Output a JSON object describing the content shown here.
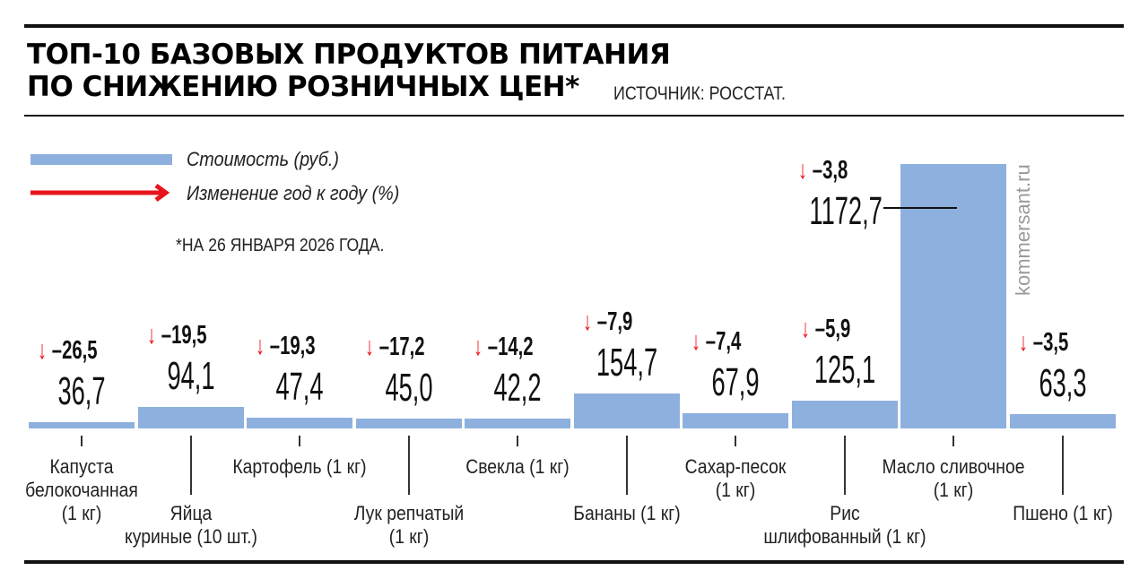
{
  "header": {
    "title_line1": "ТОП-10 БАЗОВЫХ ПРОДУКТОВ ПИТАНИЯ",
    "title_line2": "ПО СНИЖЕНИЮ РОЗНИЧНЫХ ЦЕН*",
    "source": "ИСТОЧНИК: РОССТАТ."
  },
  "legend": {
    "bar_label": "Стоимость (руб.)",
    "arrow_label": "Изменение год к году (%)"
  },
  "footnote": "*НА 26 ЯНВАРЯ 2026 ГОДА.",
  "watermark": "kommersant.ru",
  "colors": {
    "bar": "#8eb0de",
    "arrow": "#e8141b",
    "rule": "#111111"
  },
  "arrow_glyph": "↓",
  "chart_data": {
    "type": "bar",
    "title": "ТОП-10 базовых продуктов питания по снижению розничных цен*",
    "subtitle": "Источник: Росстат. *На 26 января 2026 года.",
    "xlabel": "",
    "ylabel": "Стоимость (руб.)",
    "categories": [
      "Капуста белокочанная (1 кг)",
      "Яйца куриные (10 шт.)",
      "Картофель (1 кг)",
      "Лук репчатый (1 кг)",
      "Свекла (1 кг)",
      "Бананы (1 кг)",
      "Сахар-песок (1 кг)",
      "Рис шлифованный (1 кг)",
      "Масло сливочное (1 кг)",
      "Пшено (1 кг)"
    ],
    "series": [
      {
        "name": "Стоимость (руб.)",
        "values": [
          36.7,
          94.1,
          47.4,
          45.0,
          42.2,
          154.7,
          67.9,
          125.1,
          1172.7,
          63.3
        ]
      },
      {
        "name": "Изменение год к году (%)",
        "values": [
          -26.5,
          -19.5,
          -19.3,
          -17.2,
          -14.2,
          -7.9,
          -7.4,
          -5.9,
          -3.8,
          -3.5
        ]
      }
    ],
    "legend_position": "top-left",
    "grid": false
  },
  "bars": [
    {
      "value": "36,7",
      "change": "–26,5",
      "label_lines": [
        "Капуста",
        "белокочанная",
        "(1 кг)"
      ]
    },
    {
      "value": "94,1",
      "change": "–19,5",
      "label_lines": [
        "Яйца",
        "куриные (10 шт.)"
      ]
    },
    {
      "value": "47,4",
      "change": "–19,3",
      "label_lines": [
        "Картофель (1 кг)"
      ]
    },
    {
      "value": "45,0",
      "change": "–17,2",
      "label_lines": [
        "Лук репчатый",
        "(1 кг)"
      ]
    },
    {
      "value": "42,2",
      "change": "–14,2",
      "label_lines": [
        "Свекла (1 кг)"
      ]
    },
    {
      "value": "154,7",
      "change": "–7,9",
      "label_lines": [
        "Бананы (1 кг)"
      ]
    },
    {
      "value": "67,9",
      "change": "–7,4",
      "label_lines": [
        "Сахар-песок",
        "(1 кг)"
      ]
    },
    {
      "value": "125,1",
      "change": "–5,9",
      "label_lines": [
        "Рис",
        "шлифованный (1 кг)"
      ]
    },
    {
      "value": "1172,7",
      "change": "–3,8",
      "label_lines": [
        "Масло сливочное",
        "(1 кг)"
      ]
    },
    {
      "value": "63,3",
      "change": "–3,5",
      "label_lines": [
        "Пшено (1 кг)"
      ]
    }
  ]
}
